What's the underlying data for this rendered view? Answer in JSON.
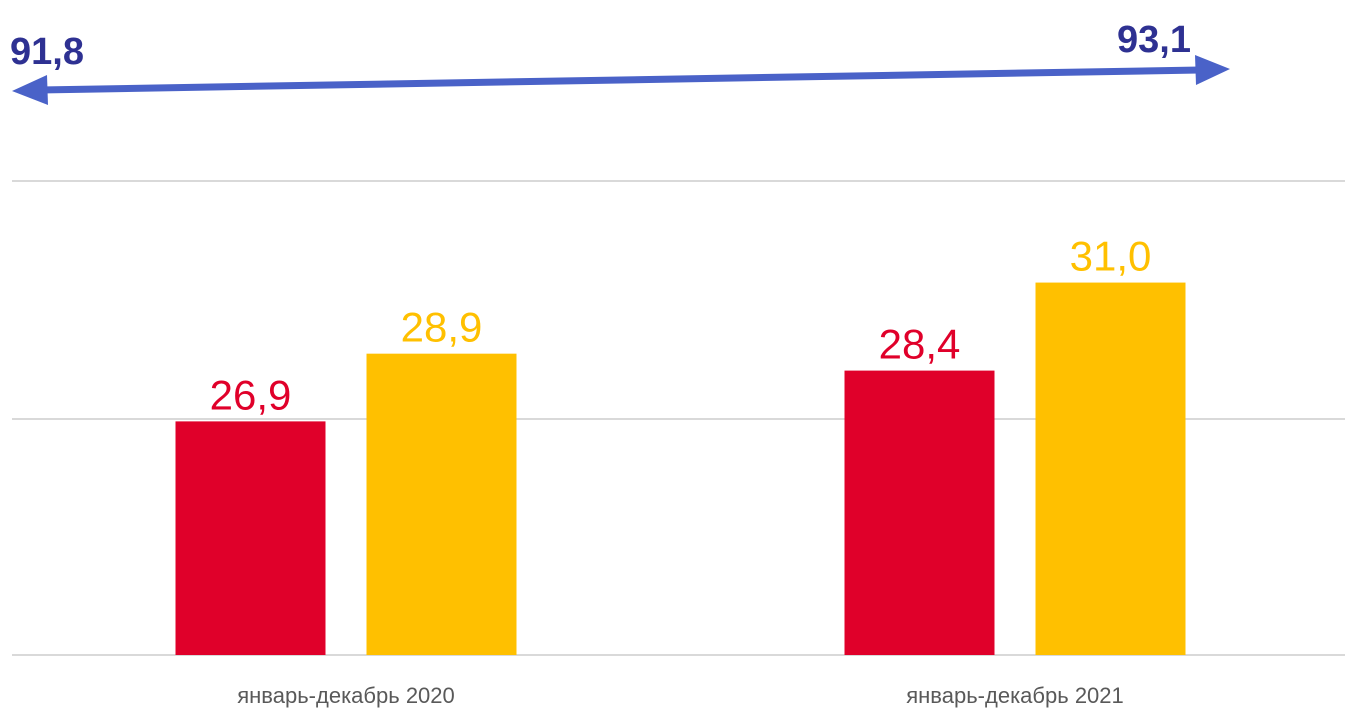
{
  "colors": {
    "series_a": "#e0002a",
    "series_b": "#ffc000",
    "arrow": "#4a62c8",
    "ends_text": "#2e3192",
    "grid": "#d9d9d9",
    "category_text": "#595959"
  },
  "arrow": {
    "start_value": "91,8",
    "end_value": "93,1"
  },
  "chart_data": {
    "type": "bar",
    "categories": [
      "январь-декабрь 2020",
      "январь-декабрь 2021"
    ],
    "series": [
      {
        "values": [
          26.9,
          28.4
        ],
        "labels": [
          "26,9",
          "28,4"
        ],
        "color": "#e0002a"
      },
      {
        "values": [
          28.9,
          31.0
        ],
        "labels": [
          "28,9",
          "31,0"
        ],
        "color": "#ffc000"
      }
    ],
    "ylim": [
      20,
      34
    ],
    "grid": true,
    "legend": "none"
  }
}
